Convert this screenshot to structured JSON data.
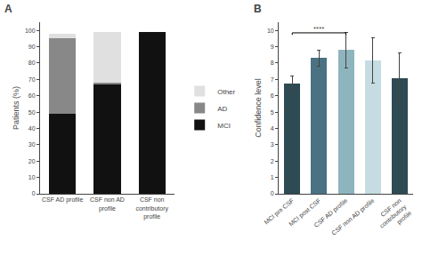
{
  "chart_data": [
    {
      "type": "bar",
      "title": "A",
      "stacked": true,
      "categories": [
        "CSF AD profile",
        "CSF non AD\nprofile",
        "CSF non\ncontributory\nprofile"
      ],
      "series": [
        {
          "name": "MCI",
          "color": "#111111",
          "values": [
            49,
            67,
            99
          ]
        },
        {
          "name": "AD",
          "color": "#888888",
          "values": [
            46,
            1,
            0
          ]
        },
        {
          "name": "Other",
          "color": "#e0e0e0",
          "values": [
            3,
            31,
            0
          ]
        }
      ],
      "ylabel": "Patients (%)",
      "ylim": [
        0,
        105
      ],
      "yticks": [
        0,
        10,
        20,
        30,
        40,
        50,
        60,
        70,
        80,
        90,
        100
      ],
      "grid": false,
      "legend": "right"
    },
    {
      "type": "bar",
      "title": "B",
      "categories": [
        "MCI pre CSF",
        "MCI post CSF",
        "CSF AD profile",
        "CSF non AD profile",
        "CSF non\ncontributory\nprofile"
      ],
      "values": [
        6.75,
        8.3,
        8.8,
        8.15,
        7.05
      ],
      "errors": [
        0.45,
        0.5,
        1.1,
        1.4,
        1.6
      ],
      "colors": [
        "#2e4a52",
        "#4a7282",
        "#8eb5be",
        "#c5dde2",
        "#2e4a52"
      ],
      "ylabel": "Confidence level",
      "ylim": [
        0,
        10.5
      ],
      "yticks": [
        0,
        1,
        2,
        3,
        4,
        5,
        6,
        7,
        8,
        9,
        10
      ],
      "grid": false,
      "annotations": [
        {
          "text": "****",
          "from": "MCI pre CSF",
          "to": "CSF AD profile",
          "y": 9.85
        }
      ]
    }
  ]
}
